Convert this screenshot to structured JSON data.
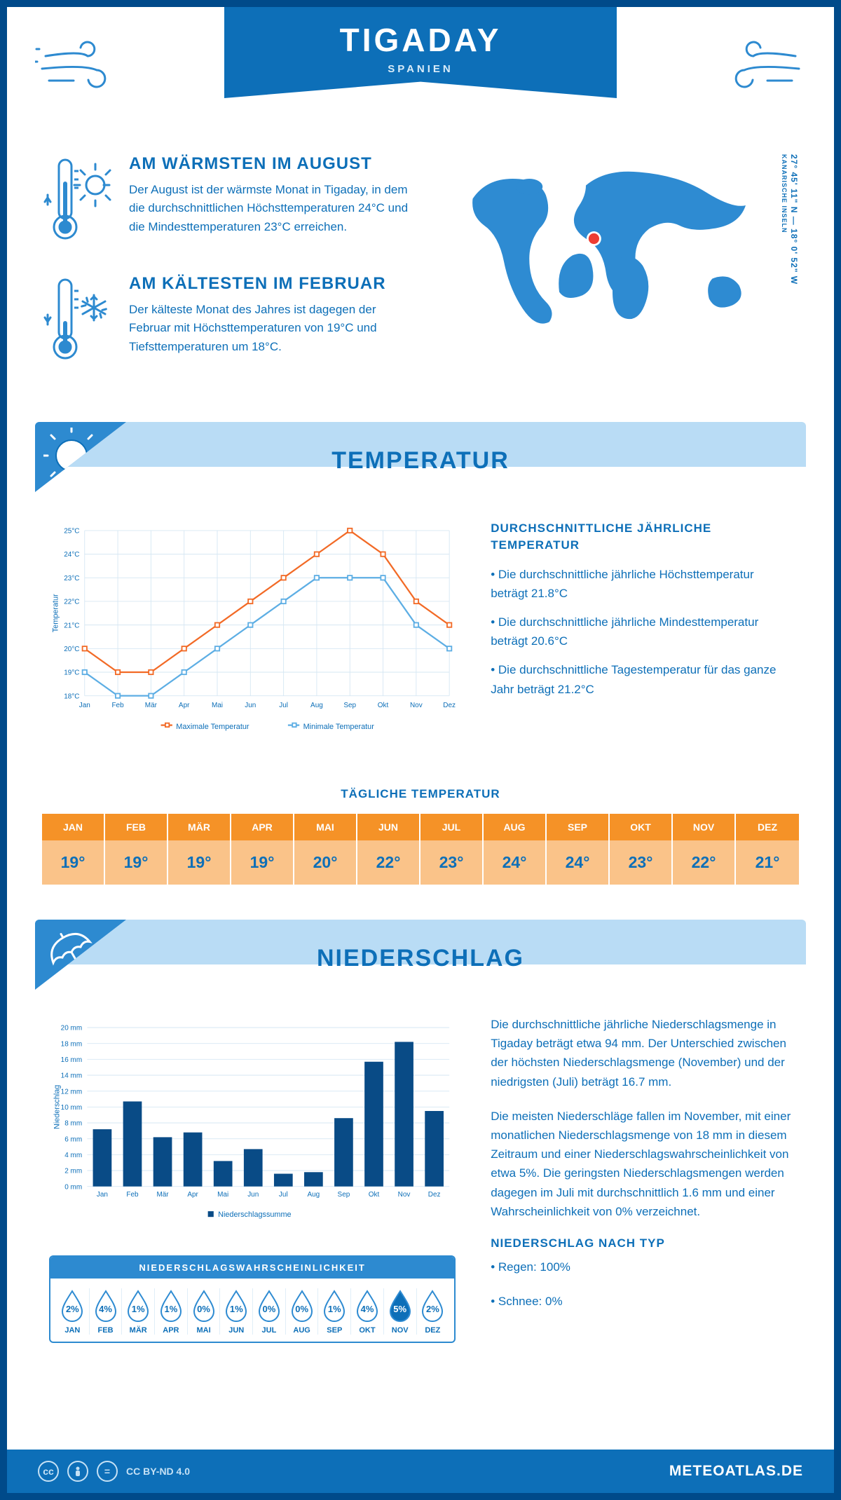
{
  "header": {
    "title": "TIGADAY",
    "subtitle": "SPANIEN"
  },
  "coords": {
    "text": "27° 45' 11\" N — 18° 0' 52\" W",
    "sub": "KANARISCHE INSELN"
  },
  "warm": {
    "title": "AM WÄRMSTEN IM AUGUST",
    "text": "Der August ist der wärmste Monat in Tigaday, in dem die durchschnittlichen Höchsttemperaturen 24°C und die Mindesttemperaturen 23°C erreichen."
  },
  "cold": {
    "title": "AM KÄLTESTEN IM FEBRUAR",
    "text": "Der kälteste Monat des Jahres ist dagegen der Februar mit Höchsttemperaturen von 19°C und Tiefsttemperaturen um 18°C."
  },
  "colors": {
    "primary": "#0d6fb8",
    "primary_light": "#2e8bd2",
    "bar": "#094b86",
    "orange": "#f26a26",
    "orange_header": "#f59227",
    "orange_cell": "#fac389",
    "light_blue": "#b9dcf5",
    "grid": "#d6e7f3",
    "sky_line": "#5daee4"
  },
  "temp_section": {
    "label": "TEMPERATUR",
    "chart": {
      "months": [
        "Jan",
        "Feb",
        "Mär",
        "Apr",
        "Mai",
        "Jun",
        "Jul",
        "Aug",
        "Sep",
        "Okt",
        "Nov",
        "Dez"
      ],
      "max": [
        20,
        19,
        19,
        20,
        21,
        22,
        23,
        24,
        25,
        24,
        22,
        21
      ],
      "min": [
        19,
        18,
        18,
        19,
        20,
        21,
        22,
        23,
        23,
        23,
        21,
        20
      ],
      "ylim": [
        18,
        25
      ],
      "ytick_step": 1,
      "max_color": "#f26a26",
      "min_color": "#5daee4",
      "legend_max": "Maximale Temperatur",
      "legend_min": "Minimale Temperatur",
      "ylabel": "Temperatur"
    },
    "summary_title": "DURCHSCHNITTLICHE JÄHRLICHE TEMPERATUR",
    "summary": [
      "• Die durchschnittliche jährliche Höchsttemperatur beträgt 21.8°C",
      "• Die durchschnittliche jährliche Mindesttemperatur beträgt 20.6°C",
      "• Die durchschnittliche Tagestemperatur für das ganze Jahr beträgt 21.2°C"
    ],
    "daily_label": "TÄGLICHE TEMPERATUR",
    "daily": {
      "months": [
        "JAN",
        "FEB",
        "MÄR",
        "APR",
        "MAI",
        "JUN",
        "JUL",
        "AUG",
        "SEP",
        "OKT",
        "NOV",
        "DEZ"
      ],
      "values": [
        "19°",
        "19°",
        "19°",
        "19°",
        "20°",
        "22°",
        "23°",
        "24°",
        "24°",
        "23°",
        "22°",
        "21°"
      ]
    }
  },
  "precip_section": {
    "label": "NIEDERSCHLAG",
    "chart": {
      "months": [
        "Jan",
        "Feb",
        "Mär",
        "Apr",
        "Mai",
        "Jun",
        "Jul",
        "Aug",
        "Sep",
        "Okt",
        "Nov",
        "Dez"
      ],
      "values": [
        7.2,
        10.7,
        6.2,
        6.8,
        3.2,
        4.7,
        1.6,
        1.8,
        8.6,
        15.7,
        18.2,
        9.5
      ],
      "ylim": [
        0,
        20
      ],
      "ytick_step": 2,
      "bar_color": "#094b86",
      "legend": "Niederschlagssumme",
      "ylabel": "Niederschlag",
      "yunit": " mm"
    },
    "paragraphs": [
      "Die durchschnittliche jährliche Niederschlagsmenge in Tigaday beträgt etwa 94 mm. Der Unterschied zwischen der höchsten Niederschlagsmenge (November) und der niedrigsten (Juli) beträgt 16.7 mm.",
      "Die meisten Niederschläge fallen im November, mit einer monatlichen Niederschlagsmenge von 18 mm in diesem Zeitraum und einer Niederschlagswahrscheinlichkeit von etwa 5%. Die geringsten Niederschlagsmengen werden dagegen im Juli mit durchschnittlich 1.6 mm und einer Wahrscheinlichkeit von 0% verzeichnet."
    ],
    "type_title": "NIEDERSCHLAG NACH TYP",
    "type_lines": [
      "• Regen: 100%",
      "• Schnee: 0%"
    ],
    "prob": {
      "title": "NIEDERSCHLAGSWAHRSCHEINLICHKEIT",
      "months": [
        "JAN",
        "FEB",
        "MÄR",
        "APR",
        "MAI",
        "JUN",
        "JUL",
        "AUG",
        "SEP",
        "OKT",
        "NOV",
        "DEZ"
      ],
      "values": [
        "2%",
        "4%",
        "1%",
        "1%",
        "0%",
        "1%",
        "0%",
        "0%",
        "1%",
        "4%",
        "5%",
        "2%"
      ],
      "highlight_index": 10
    }
  },
  "footer": {
    "license": "CC BY-ND 4.0",
    "brand": "METEOATLAS.DE"
  }
}
